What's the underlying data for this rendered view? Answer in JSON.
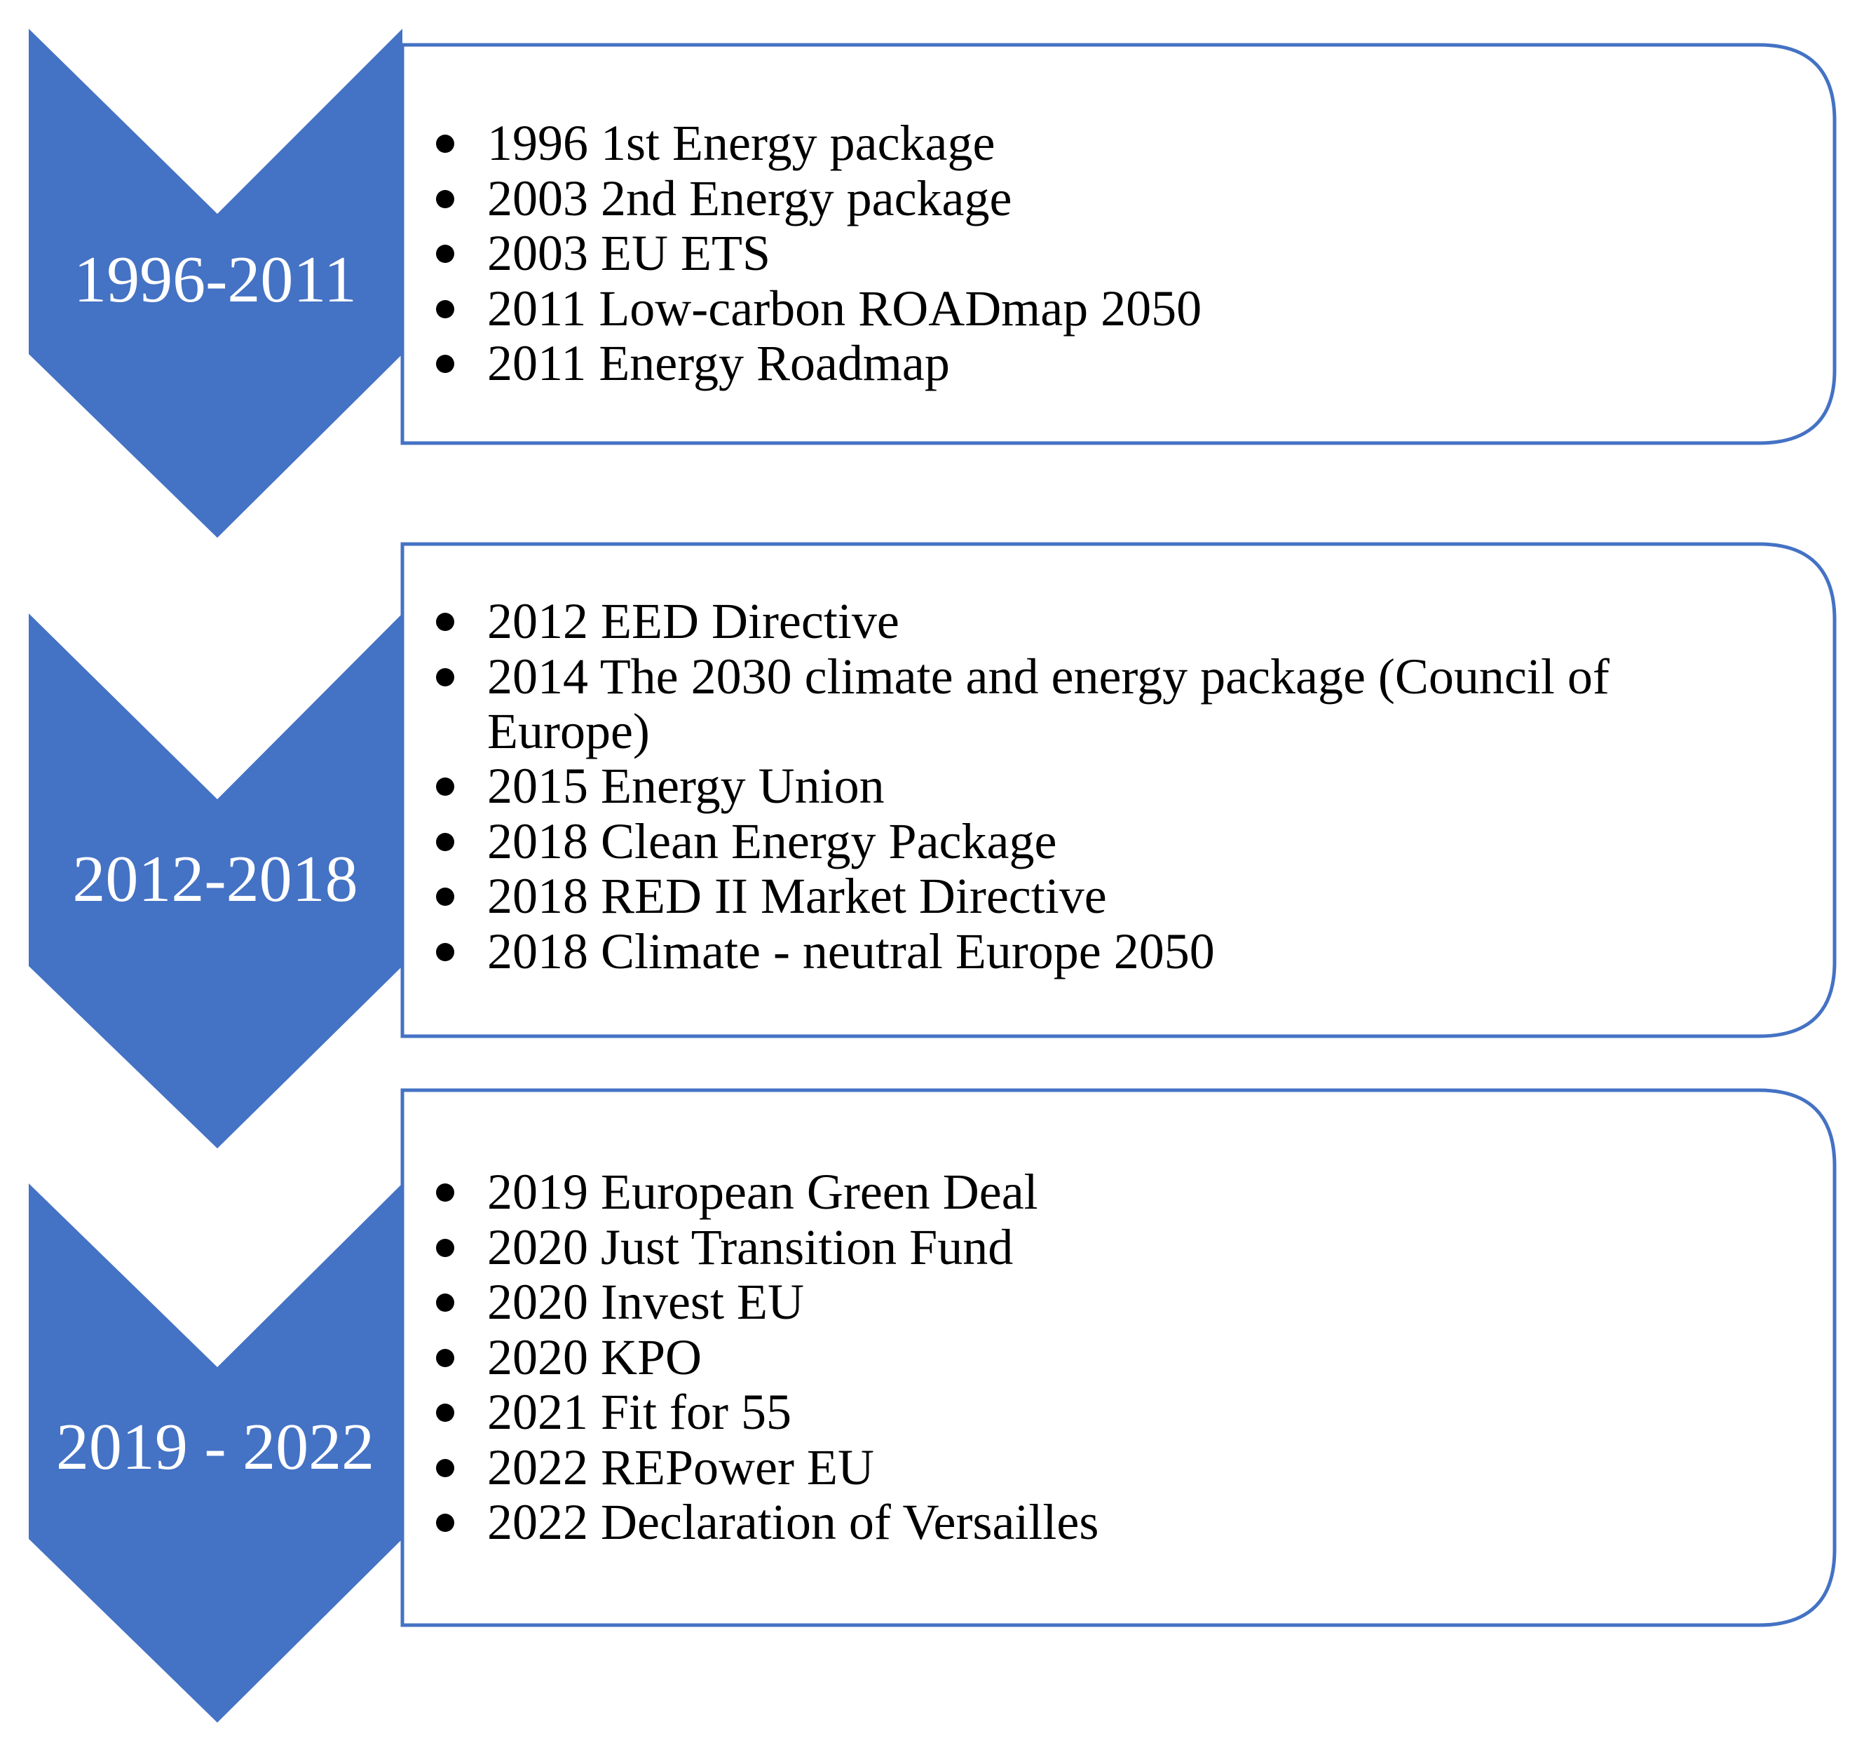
{
  "colors": {
    "accent": "#4472C4",
    "label_text": "#ffffff",
    "body_text": "#000000",
    "box_fill": "#ffffff"
  },
  "periods": [
    {
      "label": "1996-2011",
      "events": [
        [
          "1996 1st Energy package"
        ],
        [
          "2003 2nd Energy package"
        ],
        [
          "2003 EU ETS"
        ],
        [
          "2011 Low-carbon ROADmap 2050"
        ],
        [
          "2011 Energy Roadmap"
        ]
      ]
    },
    {
      "label": "2012-2018",
      "events": [
        [
          "2012 EED Directive"
        ],
        [
          "2014 The 2030 climate and energy package (Council of",
          "Europe)"
        ],
        [
          "2015 Energy Union"
        ],
        [
          "2018 Clean Energy Package"
        ],
        [
          "2018 RED II Market Directive"
        ],
        [
          "2018 Climate - neutral Europe 2050"
        ]
      ]
    },
    {
      "label": "2019 - 2022",
      "events": [
        [
          "2019 European Green Deal"
        ],
        [
          "2020 Just Transition Fund"
        ],
        [
          "2020 Invest EU"
        ],
        [
          "2020 KPO"
        ],
        [
          "2021 Fit for 55"
        ],
        [
          "2022 REPower EU"
        ],
        [
          "2022 Declaration of Versailles"
        ]
      ]
    }
  ]
}
